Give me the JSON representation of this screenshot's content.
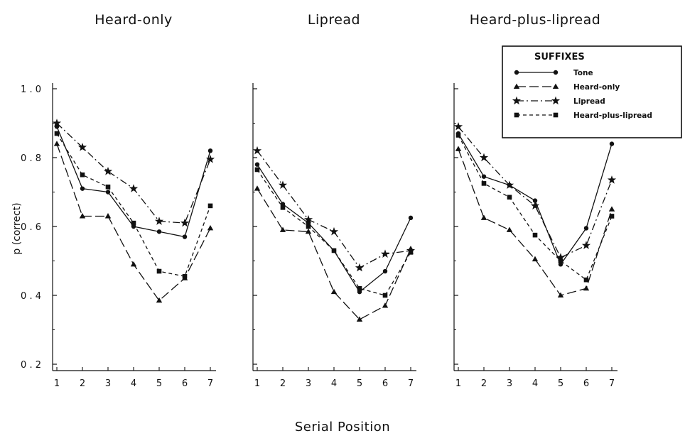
{
  "chart_data": {
    "type": "line",
    "xlabel": "Serial Position",
    "ylabel": "p (correct)",
    "x": [
      1,
      2,
      3,
      4,
      5,
      6,
      7
    ],
    "x_ticks": [
      "1",
      "2",
      "3",
      "4",
      "5",
      "6",
      "7"
    ],
    "ylim": [
      0.2,
      1.0
    ],
    "y_ticks": [
      "0.2",
      "0.4",
      "0.6",
      "0.8",
      "1.0"
    ],
    "grid": false,
    "legend": {
      "title": "SUFFIXES",
      "placement": "top-right",
      "entries": [
        "Tone",
        "Heard-only",
        "Lipread",
        "Heard-plus-lipread"
      ]
    },
    "panels": [
      {
        "title": "Heard-only",
        "series": [
          {
            "name": "Tone",
            "marker": "circle",
            "dash": "solid",
            "values": [
              0.89,
              0.71,
              0.7,
              0.6,
              0.585,
              0.57,
              0.82
            ]
          },
          {
            "name": "Heard-only",
            "marker": "triangle",
            "dash": "long-dash",
            "values": [
              0.84,
              0.63,
              0.63,
              0.49,
              0.385,
              0.45,
              0.595
            ]
          },
          {
            "name": "Lipread",
            "marker": "star",
            "dash": "dash-dot",
            "values": [
              0.9,
              0.83,
              0.76,
              0.71,
              0.615,
              0.61,
              0.795
            ]
          },
          {
            "name": "Heard-plus-lipread",
            "marker": "square",
            "dash": "short-dash",
            "values": [
              0.87,
              0.75,
              0.715,
              0.61,
              0.47,
              0.455,
              0.66
            ]
          }
        ]
      },
      {
        "title": "Lipread",
        "series": [
          {
            "name": "Tone",
            "marker": "circle",
            "dash": "solid",
            "values": [
              0.78,
              0.665,
              0.61,
              0.53,
              0.41,
              0.47,
              0.625
            ]
          },
          {
            "name": "Heard-only",
            "marker": "triangle",
            "dash": "long-dash",
            "values": [
              0.71,
              0.59,
              0.585,
              0.41,
              0.33,
              0.37,
              0.535
            ]
          },
          {
            "name": "Lipread",
            "marker": "star",
            "dash": "dash-dot",
            "values": [
              0.82,
              0.72,
              0.62,
              0.585,
              0.48,
              0.52,
              0.53
            ]
          },
          {
            "name": "Heard-plus-lipread",
            "marker": "square",
            "dash": "short-dash",
            "values": [
              0.765,
              0.655,
              0.6,
              0.53,
              0.42,
              0.4,
              0.525
            ]
          }
        ]
      },
      {
        "title": "Heard-plus-lipread",
        "series": [
          {
            "name": "Tone",
            "marker": "circle",
            "dash": "solid",
            "values": [
              0.87,
              0.745,
              0.72,
              0.675,
              0.49,
              0.595,
              0.84
            ]
          },
          {
            "name": "Heard-only",
            "marker": "triangle",
            "dash": "long-dash",
            "values": [
              0.825,
              0.625,
              0.59,
              0.505,
              0.4,
              0.42,
              0.65
            ]
          },
          {
            "name": "Lipread",
            "marker": "star",
            "dash": "dash-dot",
            "values": [
              0.89,
              0.8,
              0.72,
              0.66,
              0.51,
              0.545,
              0.735
            ]
          },
          {
            "name": "Heard-plus-lipread",
            "marker": "square",
            "dash": "short-dash",
            "values": [
              0.865,
              0.725,
              0.685,
              0.575,
              0.5,
              0.445,
              0.63
            ]
          }
        ]
      }
    ]
  }
}
